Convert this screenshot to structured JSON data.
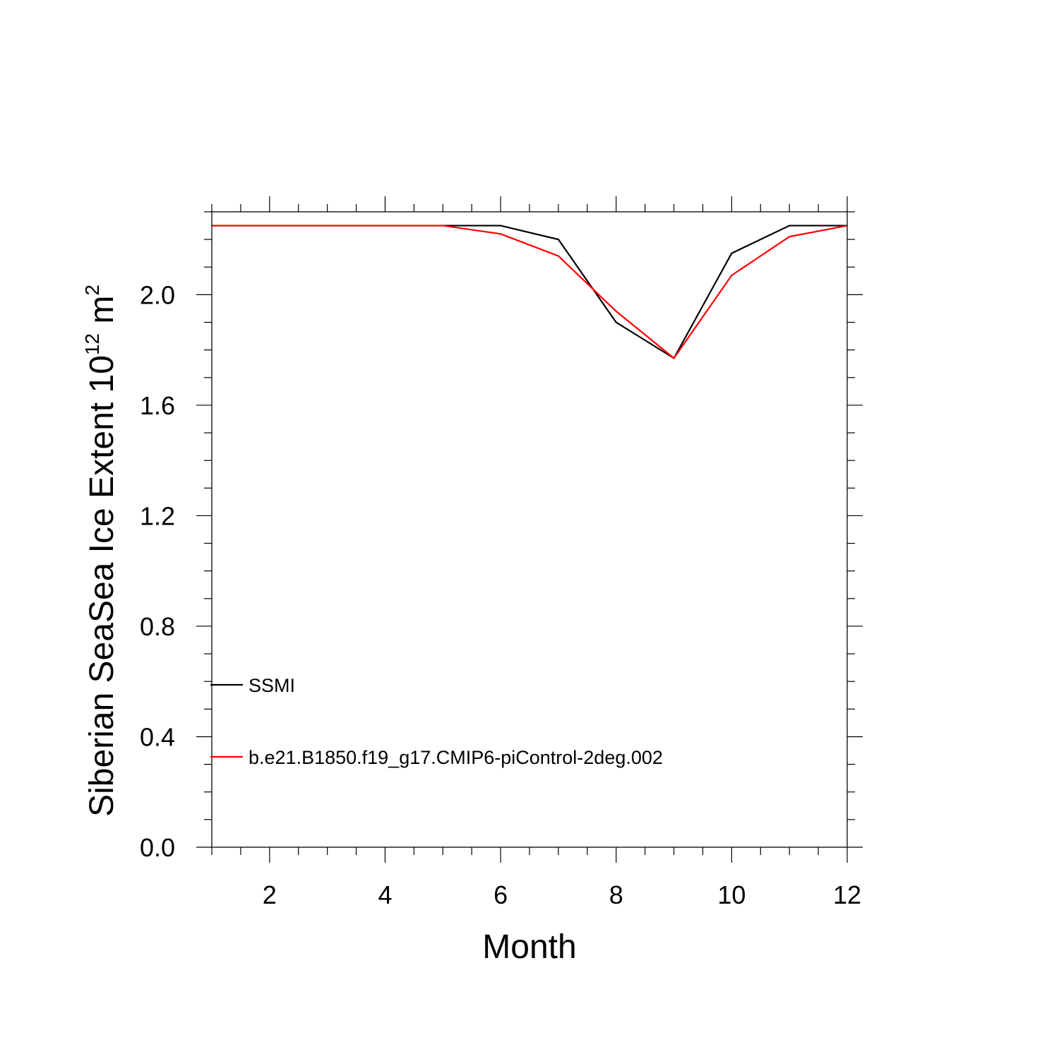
{
  "chart_data": {
    "type": "line",
    "xlabel": "Month",
    "ylabel": {
      "main": "Siberian SeaSea Ice Extent 10",
      "superscript1": "12",
      "unit": " m",
      "superscript2": "2"
    },
    "xlim": [
      1,
      12
    ],
    "ylim": [
      0,
      2.3
    ],
    "x_ticks": [
      2,
      4,
      6,
      8,
      10,
      12
    ],
    "y_ticks": [
      0.0,
      0.4,
      0.8,
      1.2,
      1.6,
      2.0
    ],
    "y_tick_labels": [
      "0.0",
      "0.4",
      "0.8",
      "1.2",
      "1.6",
      "2.0"
    ],
    "grid": false,
    "legend_placement": "lower-left",
    "x": [
      1,
      2,
      3,
      4,
      5,
      6,
      7,
      8,
      9,
      10,
      11,
      12
    ],
    "series": [
      {
        "name": "SSMI",
        "color": "#000000",
        "values": [
          2.25,
          2.25,
          2.25,
          2.25,
          2.25,
          2.25,
          2.2,
          1.9,
          1.77,
          2.15,
          2.25,
          2.25
        ]
      },
      {
        "name": "b.e21.B1850.f19_g17.CMIP6-piControl-2deg.002",
        "color": "#ff0000",
        "values": [
          2.25,
          2.25,
          2.25,
          2.25,
          2.25,
          2.22,
          2.14,
          1.94,
          1.77,
          2.07,
          2.21,
          2.25
        ]
      }
    ]
  }
}
